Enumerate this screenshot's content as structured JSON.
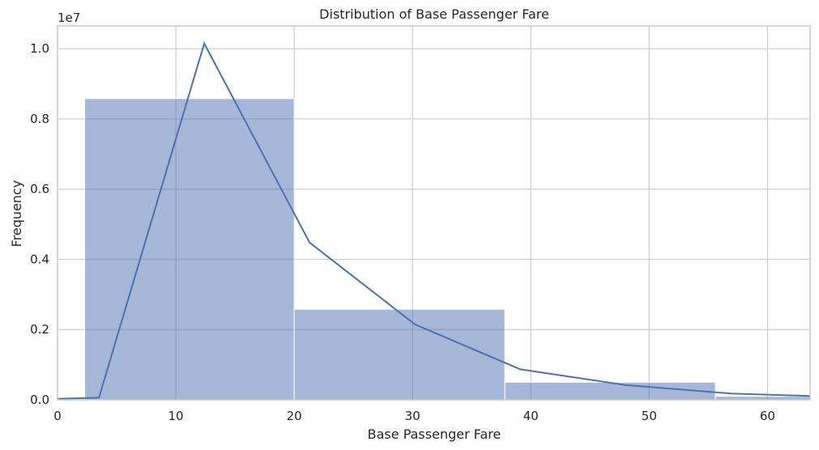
{
  "chart_data": {
    "type": "bar",
    "title": "Distribution of Base Passenger Fare",
    "xlabel": "Base Passenger Fare",
    "ylabel": "Frequency",
    "y_offset_label": "1e7",
    "xlim": [
      0,
      63.6
    ],
    "ylim": [
      0,
      10650000
    ],
    "x_ticks": [
      0,
      10,
      20,
      30,
      40,
      50,
      60
    ],
    "y_ticks": [
      0,
      2000000,
      4000000,
      6000000,
      8000000,
      10000000
    ],
    "y_tick_labels": [
      "0.0",
      "0.2",
      "0.4",
      "0.6",
      "0.8",
      "1.0"
    ],
    "grid": true,
    "bar_color": "#4c72b0",
    "bins": [
      {
        "x0": 2.3,
        "x1": 20.0,
        "value": 8580000
      },
      {
        "x0": 20.0,
        "x1": 37.8,
        "value": 2580000
      },
      {
        "x0": 37.8,
        "x1": 55.6,
        "value": 500000
      },
      {
        "x0": 55.6,
        "x1": 73.4,
        "value": 100000
      }
    ],
    "series": [
      {
        "type": "line",
        "color": "#4c72b0",
        "x": [
          0,
          3.5,
          12.4,
          21.3,
          30.2,
          39.1,
          48.0,
          56.9,
          63.6
        ],
        "y": [
          30000,
          60000,
          10150000,
          4480000,
          2150000,
          870000,
          420000,
          180000,
          110000
        ]
      }
    ]
  }
}
